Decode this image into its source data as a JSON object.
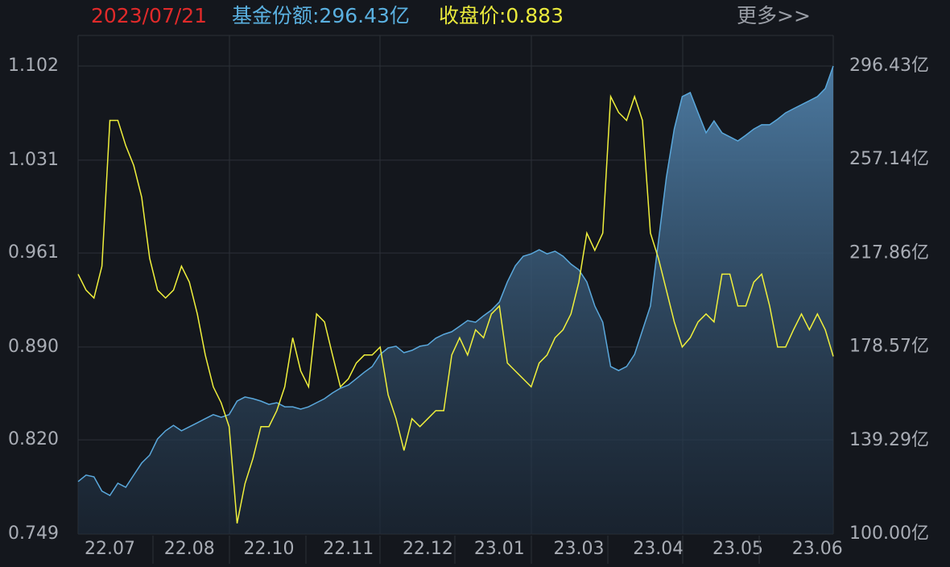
{
  "chart_data": {
    "type": "line",
    "header": {
      "date": "2023/07/21",
      "share": "基金份额:296.43亿",
      "close": "收盘价:0.883",
      "more": "更多>>"
    },
    "categories": [
      null,
      null,
      null,
      null,
      "22.07",
      null,
      null,
      null,
      null,
      null,
      null,
      null,
      null,
      null,
      "22.08",
      null,
      null,
      null,
      null,
      null,
      null,
      null,
      null,
      null,
      "22.10",
      null,
      null,
      null,
      null,
      null,
      null,
      null,
      null,
      null,
      "22.11",
      null,
      null,
      null,
      null,
      null,
      null,
      null,
      null,
      null,
      "22.12",
      null,
      null,
      null,
      null,
      null,
      null,
      null,
      null,
      "23.01",
      null,
      null,
      null,
      null,
      null,
      null,
      null,
      null,
      null,
      "23.03",
      null,
      null,
      null,
      null,
      null,
      null,
      null,
      null,
      null,
      "23.04",
      null,
      null,
      null,
      null,
      null,
      null,
      null,
      null,
      null,
      "23.05",
      null,
      null,
      null,
      null,
      null,
      null,
      null,
      null,
      null,
      "23.06",
      null,
      null
    ],
    "ylim": [
      0.749,
      1.102
    ],
    "yticks": [
      0.749,
      {
        "value": 0.82,
        "label": "0.820"
      },
      {
        "value": 0.89,
        "label": "0.890"
      },
      0.961,
      1.031,
      1.102
    ],
    "y2lim": [
      100,
      296.43
    ],
    "y2ticks": [
      {
        "value": 100,
        "label": "100.00亿"
      },
      {
        "value": 139.29,
        "label": "139.29亿"
      },
      {
        "value": 178.57,
        "label": "178.57亿"
      },
      {
        "value": 217.86,
        "label": "217.86亿"
      },
      {
        "value": 257.14,
        "label": "257.14亿"
      },
      {
        "value": 296.43,
        "label": "296.43亿"
      }
    ],
    "grid": true,
    "series": [
      {
        "color": "#f0f03c",
        "values": [
          0.945,
          0.933,
          0.927,
          0.951,
          1.061,
          1.061,
          1.042,
          1.027,
          1.003,
          0.957,
          0.933,
          0.927,
          0.933,
          0.951,
          0.939,
          0.915,
          0.884,
          0.86,
          0.848,
          0.83,
          0.757,
          0.787,
          0.806,
          0.83,
          0.83,
          0.842,
          0.86,
          0.897,
          0.872,
          0.86,
          0.915,
          0.909,
          0.884,
          0.86,
          0.866,
          0.878,
          0.884,
          0.884,
          0.89,
          0.854,
          0.836,
          0.812,
          0.836,
          0.83,
          0.836,
          0.842,
          0.842,
          0.884,
          0.897,
          0.884,
          0.903,
          0.897,
          0.915,
          0.921,
          0.878,
          0.872,
          0.866,
          0.86,
          0.878,
          0.884,
          0.897,
          0.903,
          0.915,
          0.939,
          0.976,
          0.963,
          0.976,
          1.079,
          1.067,
          1.061,
          1.079,
          1.061,
          0.976,
          0.957,
          0.933,
          0.909,
          0.89,
          0.897,
          0.909,
          0.915,
          0.909,
          0.945,
          0.945,
          0.921,
          0.921,
          0.939,
          0.945,
          0.921,
          0.89,
          0.89,
          0.903,
          0.915,
          0.903,
          0.915,
          0.903,
          0.883
        ]
      },
      {
        "color": "#5aa8dc",
        "axis": "y2",
        "values": [
          122,
          124.7,
          124,
          118,
          116.2,
          121.3,
          119.6,
          124.7,
          129.8,
          133.1,
          139.9,
          143.3,
          145.6,
          143.3,
          145,
          146.7,
          148.4,
          150.1,
          149,
          150.1,
          155.8,
          157.5,
          156.8,
          155.8,
          154.4,
          155.1,
          153.4,
          153.4,
          152.4,
          153.4,
          155.1,
          156.8,
          159.2,
          161.2,
          162.5,
          165.2,
          167.9,
          170.3,
          175.4,
          178.1,
          178.8,
          176.1,
          177.1,
          178.8,
          179.4,
          182.2,
          183.8,
          184.9,
          187.2,
          189.6,
          188.9,
          191.6,
          194,
          197.4,
          205.8,
          212.6,
          216.6,
          217.6,
          219.3,
          217.6,
          218.7,
          216.6,
          213.3,
          210.9,
          205.8,
          195.7,
          188.9,
          170.3,
          168.6,
          170.3,
          175.4,
          185.5,
          195.7,
          222.7,
          249.7,
          270,
          283.6,
          285.3,
          276.8,
          268.4,
          273.4,
          268.4,
          266.7,
          265,
          267.4,
          270,
          271.8,
          271.8,
          274.1,
          276.8,
          278.5,
          280.2,
          281.9,
          283.6,
          287,
          296.43
        ]
      }
    ]
  }
}
